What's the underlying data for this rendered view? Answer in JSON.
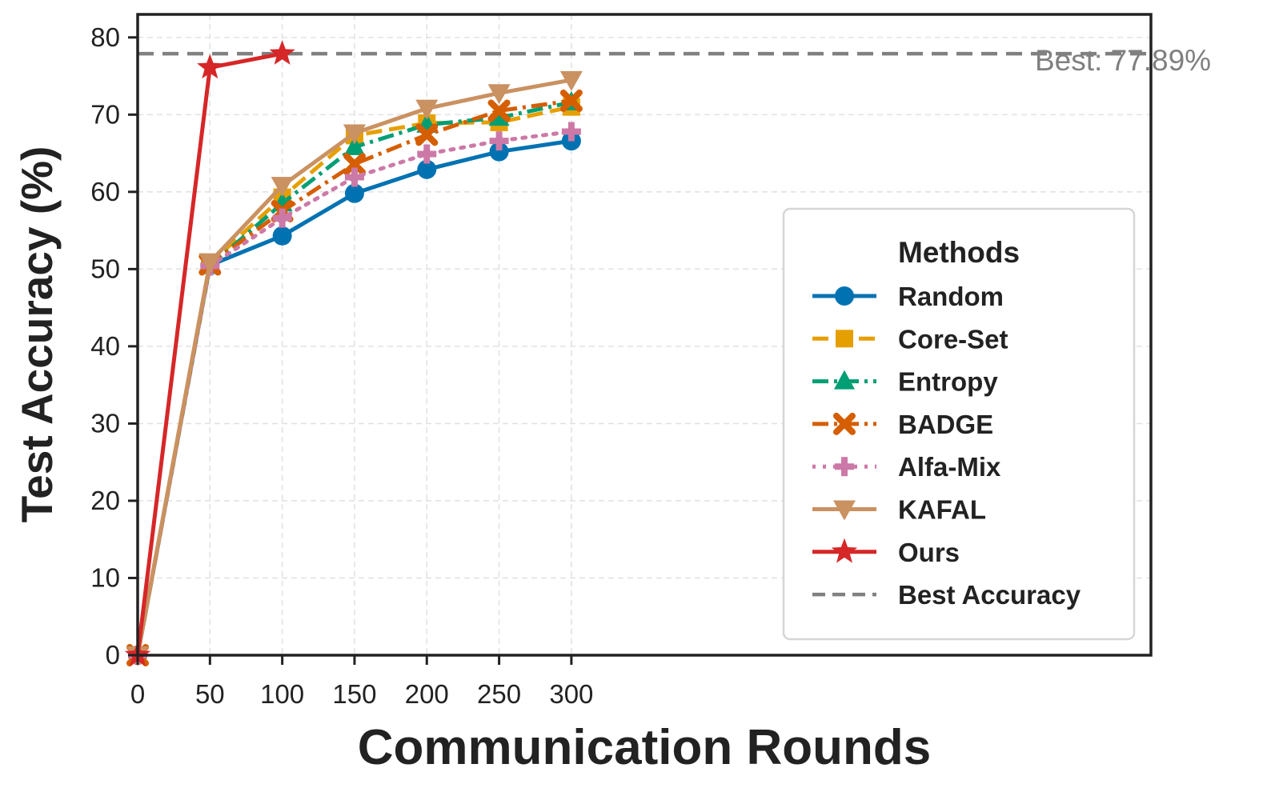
{
  "chart_data": {
    "type": "line",
    "xlabel": "Communication Rounds",
    "ylabel": "Test Accuracy (%)",
    "xlim": [
      0,
      350
    ],
    "ylim": [
      0,
      83
    ],
    "x_ticks": [
      0,
      50,
      100,
      150,
      200,
      250,
      300
    ],
    "y_ticks": [
      0,
      10,
      20,
      30,
      40,
      50,
      60,
      70,
      80
    ],
    "grid": true,
    "legend": {
      "title": "Methods",
      "placement": "center-right"
    },
    "best_line": {
      "value": 77.89,
      "label": "Best: 77.89%",
      "legend_label": "Best Accuracy",
      "color": "#808080"
    },
    "series": [
      {
        "name": "Random",
        "color": "#0072B2",
        "marker": "circle",
        "dash": "solid",
        "x": [
          0,
          50,
          100,
          150,
          200,
          250,
          300
        ],
        "y": [
          0,
          50.5,
          54.3,
          59.8,
          62.9,
          65.2,
          66.6
        ]
      },
      {
        "name": "Core-Set",
        "color": "#E69F00",
        "marker": "square",
        "dash": "dashed",
        "x": [
          0,
          50,
          100,
          150,
          200,
          250,
          300
        ],
        "y": [
          0,
          50.7,
          59.3,
          67.3,
          68.9,
          69.0,
          71.0
        ]
      },
      {
        "name": "Entropy",
        "color": "#009E73",
        "marker": "triangle",
        "dash": "dashdot",
        "x": [
          0,
          50,
          100,
          150,
          200,
          250,
          300
        ],
        "y": [
          0,
          50.4,
          58.5,
          65.8,
          68.7,
          69.6,
          71.6
        ]
      },
      {
        "name": "BADGE",
        "color": "#D55E00",
        "marker": "x",
        "dash": "dashdot",
        "x": [
          0,
          50,
          100,
          150,
          200,
          250,
          300
        ],
        "y": [
          0,
          50.6,
          57.5,
          63.6,
          67.4,
          70.5,
          71.8
        ]
      },
      {
        "name": "Alfa-Mix",
        "color": "#CC79A7",
        "marker": "plus",
        "dash": "dotted",
        "x": [
          0,
          50,
          100,
          150,
          200,
          250,
          300
        ],
        "y": [
          0,
          50.4,
          56.6,
          61.9,
          64.9,
          66.6,
          67.8
        ]
      },
      {
        "name": "KAFAL",
        "color": "#CA9161",
        "marker": "tri-down",
        "dash": "solid",
        "x": [
          0,
          50,
          100,
          150,
          200,
          250,
          300
        ],
        "y": [
          0,
          50.9,
          60.8,
          67.6,
          70.8,
          72.8,
          74.5
        ]
      },
      {
        "name": "Ours",
        "color": "#D62728",
        "marker": "star",
        "dash": "solid",
        "x": [
          0,
          50,
          100
        ],
        "y": [
          0,
          76.1,
          77.89
        ]
      }
    ]
  }
}
